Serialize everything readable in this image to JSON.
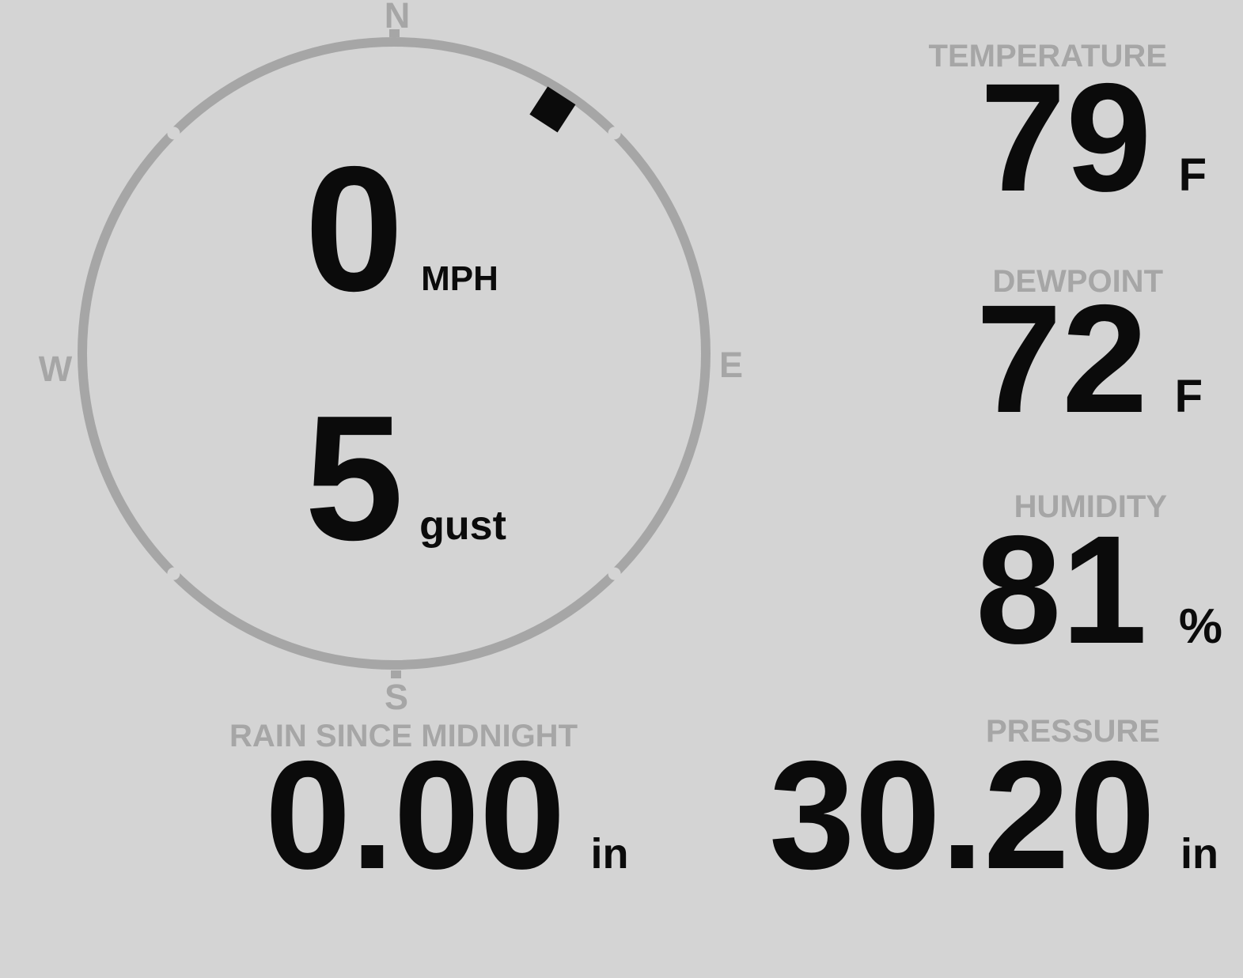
{
  "theme": {
    "background_color": "#d4d4d4",
    "muted_color": "#a6a6a6",
    "text_color": "#0b0b0b"
  },
  "compass": {
    "cardinals": {
      "north": "N",
      "east": "E",
      "south": "S",
      "west": "W"
    },
    "wind_speed": "0",
    "wind_speed_unit": "MPH",
    "wind_gust": "5",
    "wind_gust_unit": "gust",
    "wind_direction_deg": 33
  },
  "metrics": {
    "temperature": {
      "label": "TEMPERATURE",
      "value": "79",
      "unit": "F"
    },
    "dewpoint": {
      "label": "DEWPOINT",
      "value": "72",
      "unit": "F"
    },
    "humidity": {
      "label": "HUMIDITY",
      "value": "81",
      "unit": "%"
    },
    "rain_since_midnight": {
      "label": "RAIN SINCE MIDNIGHT",
      "value": "0.00",
      "unit": "in"
    },
    "pressure": {
      "label": "PRESSURE",
      "value": "30.20",
      "unit": "in"
    }
  }
}
